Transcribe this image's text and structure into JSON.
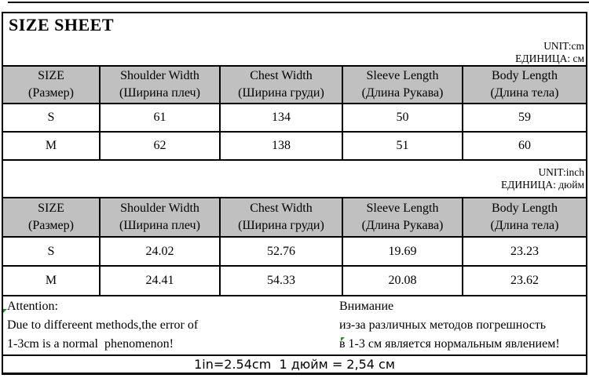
{
  "title": "SIZE SHEET",
  "colors": {
    "header_bg": "#c0c0c0",
    "border": "#000000",
    "marker_green": "#2e8b2e",
    "background": "#ffffff"
  },
  "units": {
    "cm": {
      "line1": "UNIT:cm",
      "line2": "ЕДИНИЦА: см"
    },
    "inch": {
      "line1": "UNIT:inch",
      "line2": "ЕДИНИЦА: дюйм"
    }
  },
  "columns": [
    {
      "en": "SIZE",
      "ru": "(Размер)"
    },
    {
      "en": "Shoulder Width",
      "ru": "(Ширина плеч)"
    },
    {
      "en": "Chest Width",
      "ru": "(Ширина груди)"
    },
    {
      "en": "Sleeve Length",
      "ru": "(Длина Рукава)"
    },
    {
      "en": "Body Length",
      "ru": "(Длина тела)"
    }
  ],
  "cm_table": [
    {
      "size": "S",
      "values": [
        "61",
        "134",
        "50",
        "59"
      ]
    },
    {
      "size": "M",
      "values": [
        "62",
        "138",
        "51",
        "60"
      ]
    }
  ],
  "inch_table": [
    {
      "size": "S",
      "values": [
        "24.02",
        "52.76",
        "19.69",
        "23.23"
      ]
    },
    {
      "size": "M",
      "values": [
        "24.41",
        "54.33",
        "20.08",
        "23.62"
      ]
    }
  ],
  "attention": {
    "en": {
      "line1": "Attention:",
      "line2": "Due to differeent methods,the error of",
      "line3": "1-3cm is a normal  phenomenon!"
    },
    "ru": {
      "line1": "Внимание",
      "line2": "из-за различных методов погрешность",
      "line3": "в 1-3 см является нормальным явлением!"
    }
  },
  "conversion": "1in=2.54cm  1 дюйм = 2,54 см"
}
